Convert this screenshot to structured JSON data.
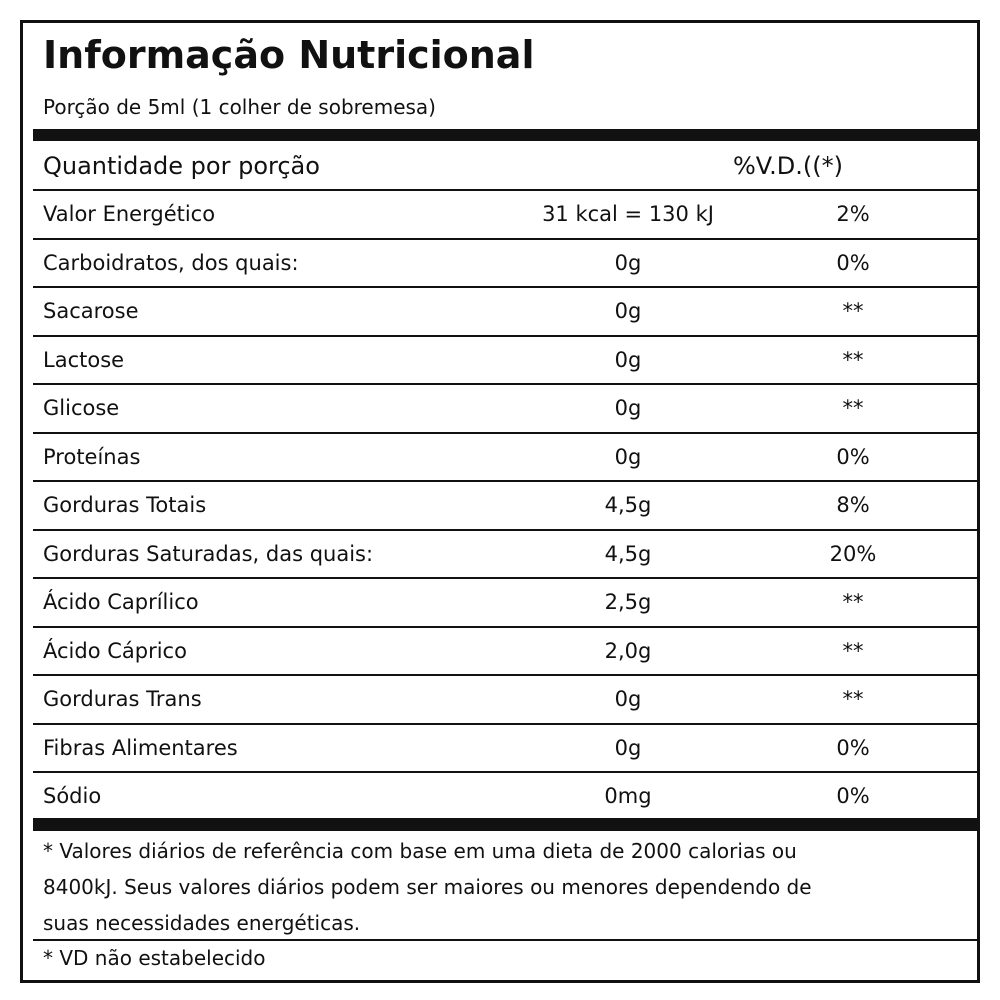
{
  "header": {
    "title": "Informação Nutricional",
    "subtitle": "Porção de 5ml (1 colher de sobremesa)"
  },
  "table": {
    "columns": [
      "Quantidade por porção",
      "%V.D.((*)"
    ],
    "rows": [
      [
        "Valor Energético",
        "31 kcal = 130 kJ",
        "2%"
      ],
      [
        "Carboidratos, dos quais:",
        "0g",
        "0%"
      ],
      [
        "Sacarose",
        "0g",
        "**"
      ],
      [
        "Lactose",
        "0g",
        "**"
      ],
      [
        "Glicose",
        "0g",
        "**"
      ],
      [
        "Proteínas",
        "0g",
        "0%"
      ],
      [
        "Gorduras Totais",
        "4,5g",
        "8%"
      ],
      [
        "Gorduras Saturadas, das quais:",
        "4,5g",
        "20%"
      ],
      [
        "Ácido Caprílico",
        "2,5g",
        "**"
      ],
      [
        "Ácido Cáprico",
        "2,0g",
        "**"
      ],
      [
        "Gorduras Trans",
        "0g",
        "**"
      ],
      [
        "Fibras Alimentares",
        "0g",
        "0%"
      ],
      [
        "Sódio",
        "0mg",
        "0%"
      ]
    ]
  },
  "footnotes": [
    "* Valores diários de referência com base em uma dieta de 2000 calorias ou 8400kJ. Seus valores diários podem ser maiores ou menores dependendo de suas necessidades energéticas.",
    "* VD não estabelecido"
  ]
}
